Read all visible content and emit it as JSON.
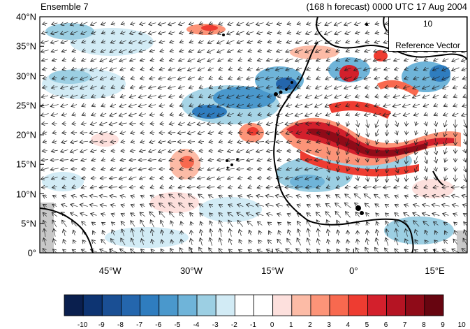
{
  "header": {
    "left_title": "Ensemble 7",
    "right_title": "(168 h forecast) 0000 UTC 17 Aug 2004"
  },
  "map": {
    "projection": "cylindrical equidistant",
    "lon_range": [
      -58,
      21
    ],
    "lat_range": [
      0,
      40
    ],
    "lat_ticks": [
      {
        "value": 0,
        "label": "0°"
      },
      {
        "value": 5,
        "label": "5°N"
      },
      {
        "value": 10,
        "label": "10°N"
      },
      {
        "value": 15,
        "label": "15°N"
      },
      {
        "value": 20,
        "label": "20°N"
      },
      {
        "value": 25,
        "label": "25°N"
      },
      {
        "value": 30,
        "label": "30°N"
      },
      {
        "value": 35,
        "label": "35°N"
      },
      {
        "value": 40,
        "label": "40°N"
      }
    ],
    "lon_ticks": [
      {
        "value": -45,
        "label": "45°W"
      },
      {
        "value": -30,
        "label": "30°W"
      },
      {
        "value": -15,
        "label": "15°W"
      },
      {
        "value": 0,
        "label": "0°"
      },
      {
        "value": 15,
        "label": "15°E"
      }
    ],
    "missing_color": "#c8c8c8",
    "coastline_color": "#000000",
    "vector_color": "#222222"
  },
  "reference_vector": {
    "value": "10",
    "label": "Reference Vector"
  },
  "colorbar": {
    "levels": [
      "-10",
      "-9",
      "-8",
      "-7",
      "-6",
      "-5",
      "-4",
      "-3",
      "-2",
      "-1",
      "0",
      "1",
      "2",
      "3",
      "4",
      "5",
      "6",
      "7",
      "8",
      "9",
      "10"
    ],
    "colors": [
      "#0a1f4e",
      "#0d3472",
      "#1a4f94",
      "#2466ad",
      "#2f7dbf",
      "#4a98cc",
      "#6fb4d9",
      "#9ccfe3",
      "#d2ebf5",
      "#ffffff",
      "#ffffff",
      "#fde0dd",
      "#fcbba6",
      "#fc9478",
      "#f8694f",
      "#ee3c31",
      "#d3202c",
      "#b51423",
      "#8f0b18",
      "#670510"
    ]
  }
}
